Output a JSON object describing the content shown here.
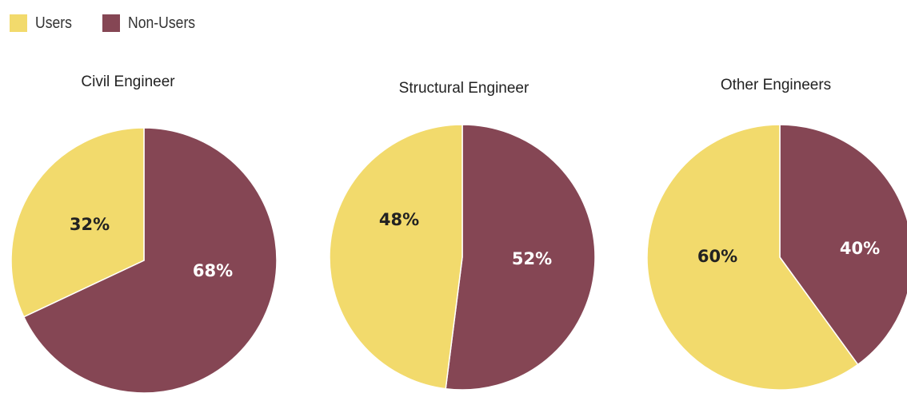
{
  "legend": [
    {
      "label": "Users",
      "color": "#f2da6c"
    },
    {
      "label": "Non-Users",
      "color": "#854654"
    }
  ],
  "chart_data": [
    {
      "type": "pie",
      "title": "Civil Engineer",
      "slices": [
        {
          "name": "Non-Users",
          "value": 68,
          "label": "68%"
        },
        {
          "name": "Users",
          "value": 32,
          "label": "32%"
        }
      ]
    },
    {
      "type": "pie",
      "title": "Structural Engineer",
      "slices": [
        {
          "name": "Non-Users",
          "value": 52,
          "label": "52%"
        },
        {
          "name": "Users",
          "value": 48,
          "label": "48%"
        }
      ]
    },
    {
      "type": "pie",
      "title": "Other Engineers",
      "slices": [
        {
          "name": "Non-Users",
          "value": 40,
          "label": "40%"
        },
        {
          "name": "Users",
          "value": 60,
          "label": "60%"
        }
      ]
    }
  ]
}
